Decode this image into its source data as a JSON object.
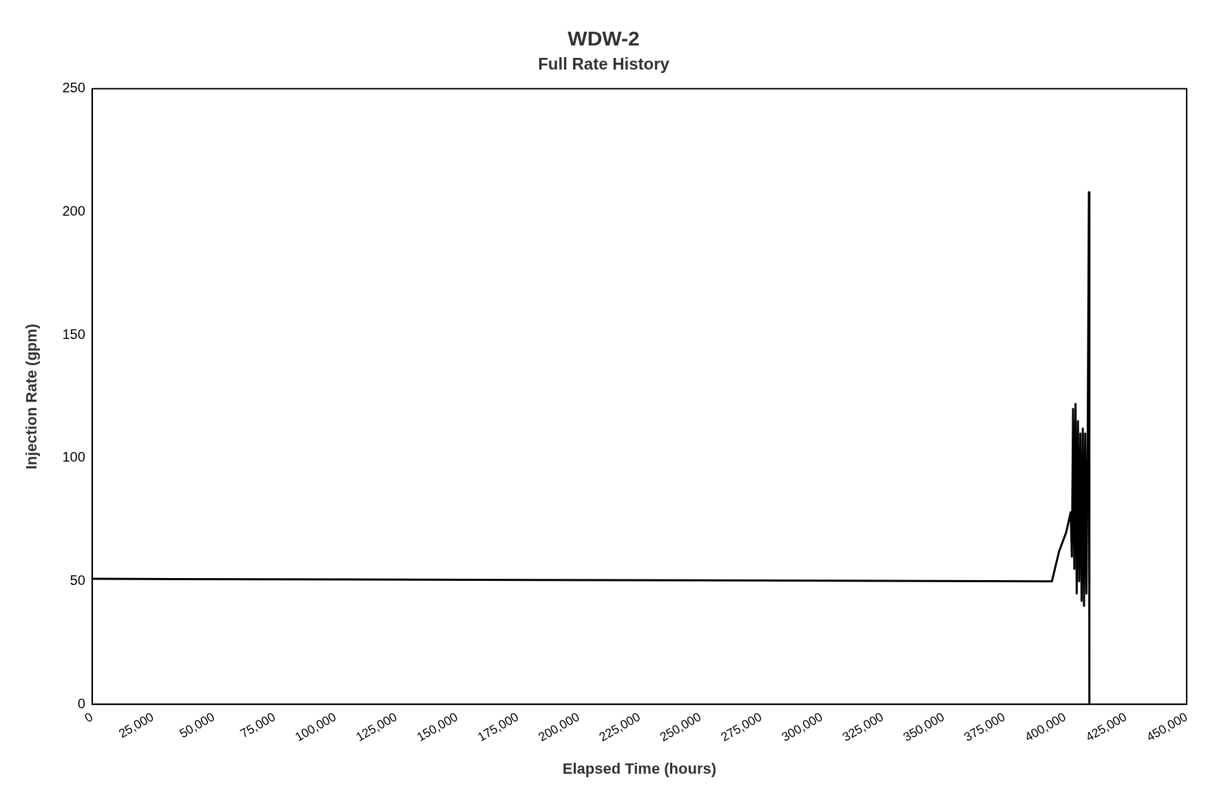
{
  "chart_data": {
    "type": "line",
    "title": "WDW-2",
    "subtitle": "Full Rate History",
    "xlabel": "Elapsed Time (hours)",
    "ylabel": "Injection Rate (gpm)",
    "x": [
      0,
      394600,
      397500,
      400500,
      402300,
      402800,
      403300,
      403800,
      404300,
      404800,
      405300,
      405800,
      406300,
      406800,
      407300,
      407800,
      408300,
      408800,
      409300,
      409800,
      410000
    ],
    "series": [
      {
        "color": "#000000",
        "values": [
          51,
          50,
          62,
          70,
          78,
          60,
          120,
          55,
          122,
          45,
          115,
          50,
          110,
          42,
          112,
          40,
          110,
          45,
          105,
          208,
          0
        ]
      }
    ],
    "xlim": [
      0,
      450000
    ],
    "xticks": [
      {
        "value": 0,
        "label": "0"
      },
      {
        "value": 25000,
        "label": "25,000"
      },
      {
        "value": 50000,
        "label": "50,000"
      },
      {
        "value": 75000,
        "label": "75,000"
      },
      {
        "value": 100000,
        "label": "100,000"
      },
      {
        "value": 125000,
        "label": "125,000"
      },
      {
        "value": 150000,
        "label": "150,000"
      },
      {
        "value": 175000,
        "label": "175,000"
      },
      {
        "value": 200000,
        "label": "200,000"
      },
      {
        "value": 225000,
        "label": "225,000"
      },
      {
        "value": 250000,
        "label": "250,000"
      },
      {
        "value": 275000,
        "label": "275,000"
      },
      {
        "value": 300000,
        "label": "300,000"
      },
      {
        "value": 325000,
        "label": "325,000"
      },
      {
        "value": 350000,
        "label": "350,000"
      },
      {
        "value": 375000,
        "label": "375,000"
      },
      {
        "value": 400000,
        "label": "400,000"
      },
      {
        "value": 425000,
        "label": "425,000"
      },
      {
        "value": 450000,
        "label": "450,000"
      }
    ],
    "ylim": [
      0,
      250
    ],
    "yticks": [
      0,
      50,
      100,
      150,
      200,
      250
    ],
    "grid": false,
    "legend": false,
    "marker": "none",
    "line_style": "solid"
  }
}
